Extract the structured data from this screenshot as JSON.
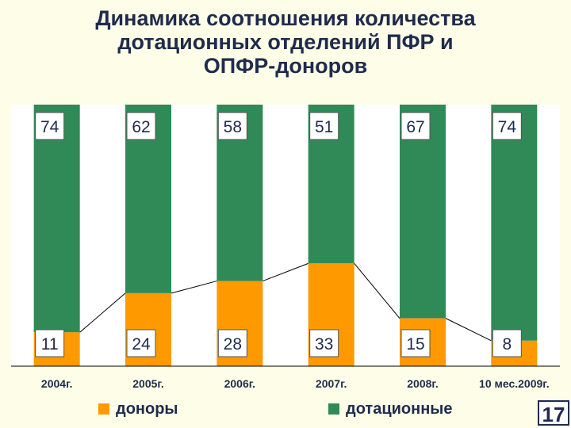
{
  "title_lines": [
    "Динамика соотношения количества",
    "дотационных отделений ПФР и",
    "ОПФР-доноров"
  ],
  "slide_number": "17",
  "colors": {
    "donors": "#ff9900",
    "subsidized": "#2f8a57",
    "plot_bg": "#ffffff",
    "text": "#1f2b4d"
  },
  "chart_data": {
    "type": "bar",
    "stacked": true,
    "normalized_percent": true,
    "categories": [
      "2004г.",
      "2005г.",
      "2006г.",
      "2007г.",
      "2008г.",
      "10 мес.2009г."
    ],
    "series": [
      {
        "name": "доноры",
        "values": [
          11,
          24,
          28,
          33,
          15,
          8
        ]
      },
      {
        "name": "дотационные",
        "values": [
          74,
          62,
          58,
          51,
          67,
          74
        ]
      }
    ],
    "data_labels": true,
    "donor_trend_line": true,
    "legend_position": "bottom"
  }
}
